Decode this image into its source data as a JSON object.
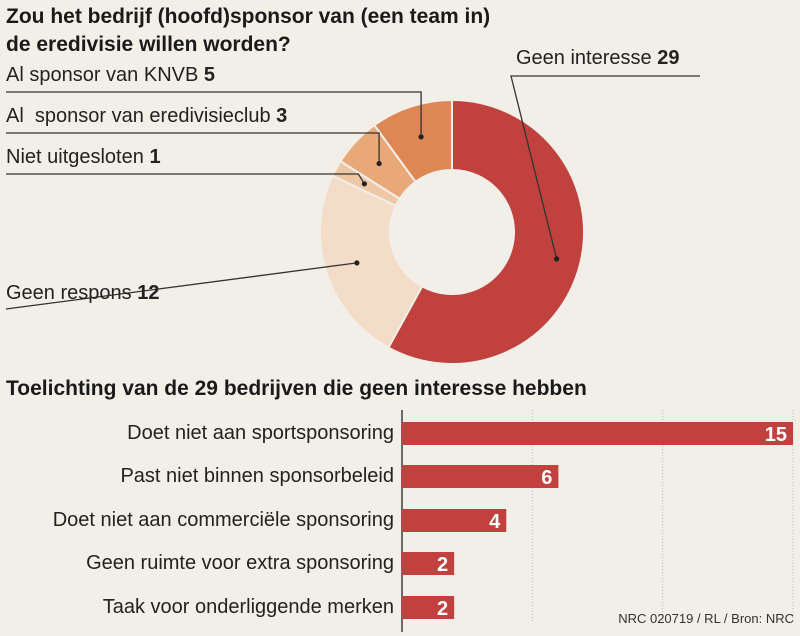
{
  "pie": {
    "title_line1": "Zou het bedrijf (hoofd)sponsor van (een team in)",
    "title_line2": "de eredivisie willen worden?"
  },
  "bars": {
    "title": "Toelichting van de 29 bedrijven die geen interesse hebben"
  },
  "source": "NRC 020719 / RL / Bron: NRC",
  "chart_data": [
    {
      "type": "pie",
      "donut": true,
      "categories": [
        "Geen interesse",
        "Geen respons",
        "Niet uitgesloten",
        "Al sponsor van eredivisieclub",
        "Al sponsor van KNVB"
      ],
      "labels": [
        "Geen interesse",
        "Geen respons",
        "Niet uitgesloten",
        "Al  sponsor van eredivisieclub",
        "Al sponsor van KNVB"
      ],
      "values": [
        29,
        12,
        1,
        3,
        5
      ],
      "colors": [
        "#c0413d",
        "#f3dcc8",
        "#eec7a6",
        "#e8a878",
        "#df8754"
      ]
    },
    {
      "type": "bar",
      "orientation": "horizontal",
      "categories": [
        "Doet niet aan sportsponsoring",
        "Past niet binnen sponsorbeleid",
        "Doet niet aan commerciële sponsoring",
        "Geen ruimte voor extra sponsoring",
        "Taak voor onderliggende merken"
      ],
      "values": [
        15,
        6,
        4,
        2,
        2
      ],
      "xlim": [
        0,
        15
      ],
      "grid": true,
      "color": "#c0413d"
    }
  ]
}
